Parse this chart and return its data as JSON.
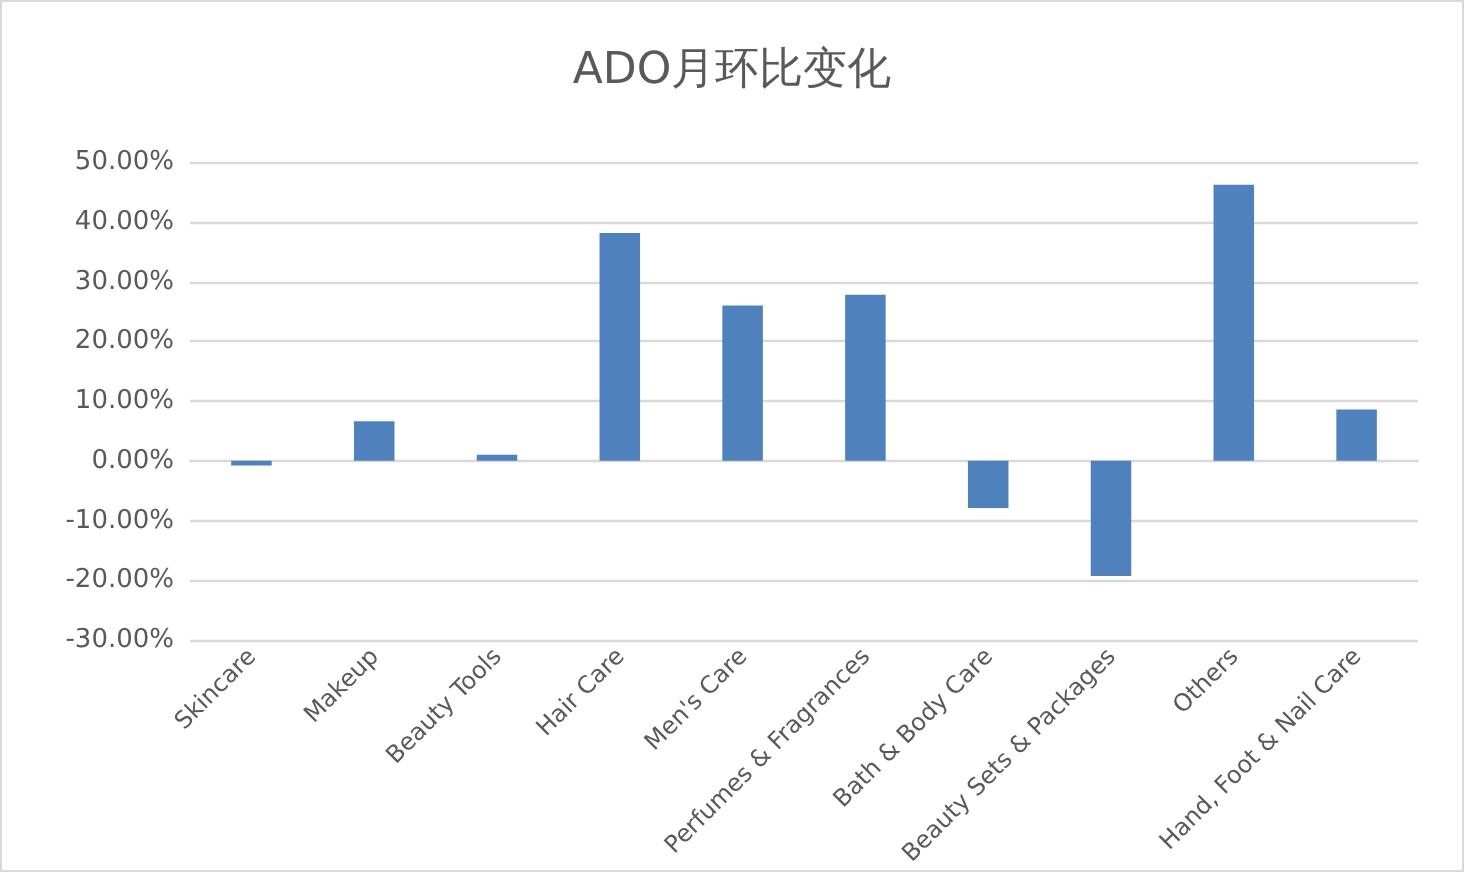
{
  "chart_data": {
    "type": "bar",
    "title": "ADO月环比变化",
    "categories": [
      "Skincare",
      "Makeup",
      "Beauty Tools",
      "Hair Care",
      "Men's Care",
      "Perfumes & Fragrances",
      "Bath & Body Care",
      "Beauty Sets & Packages",
      "Others",
      "Hand, Foot & Nail Care"
    ],
    "values": [
      -0.8,
      6.6,
      1.0,
      38.1,
      26.0,
      27.8,
      -7.9,
      -19.3,
      46.2,
      8.6
    ],
    "color": "#4f81bd",
    "ylim": [
      -30,
      50
    ],
    "yticks": [
      {
        "value": -30,
        "label": "-30.00%"
      },
      {
        "value": -20,
        "label": "-20.00%"
      },
      {
        "value": -10,
        "label": "-10.00%"
      },
      {
        "value": 0,
        "label": "0.00%"
      },
      {
        "value": 10,
        "label": "10.00%"
      },
      {
        "value": 20,
        "label": "20.00%"
      },
      {
        "value": 30,
        "label": "30.00%"
      },
      {
        "value": 40,
        "label": "40.00%"
      },
      {
        "value": 50,
        "label": "50.00%"
      }
    ],
    "grid": "y"
  }
}
